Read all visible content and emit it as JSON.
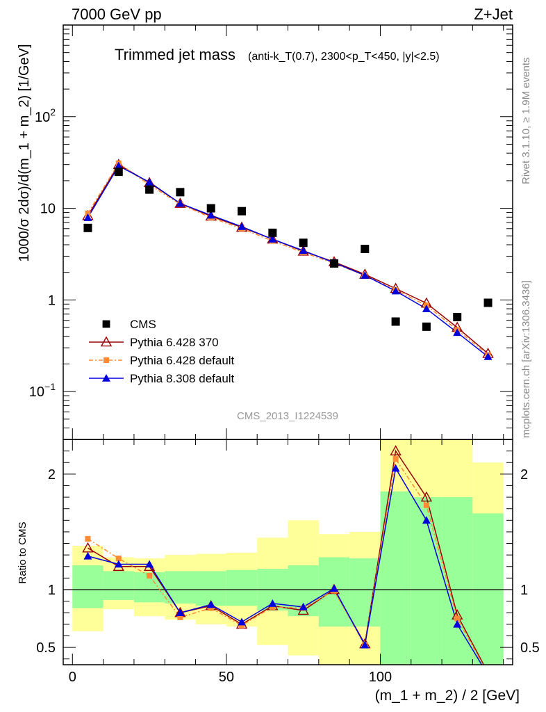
{
  "header": {
    "left": "7000 GeV pp",
    "right": "Z+Jet"
  },
  "title": {
    "main": "Trimmed jet mass",
    "sub": "(anti-k_T(0.7), 2300<p_T<450, |y|<2.5)"
  },
  "side_labels": {
    "rivet": "Rivet 3.1.10, ≥ 1.9M events",
    "mcplots": "mcplots.cern.ch [arXiv:1306.3436]"
  },
  "watermark": "CMS_2013_I1224539",
  "colors": {
    "cms": "#000000",
    "p6_370": "#990000",
    "p6_default": "#ff8a33",
    "p8_default": "#0000dd",
    "band_inner": "#99ff99",
    "band_outer": "#ffff99"
  },
  "chart_data": {
    "type": "line",
    "xlabel": "(m_1 + m_2) / 2 [GeV]",
    "ylabel": "1000/σ 2dσ)/d(m_1 + m_2) [1/GeV]",
    "ratio_ylabel": "Ratio to CMS",
    "xlim": [
      -3,
      143
    ],
    "ylim": [
      0.03,
      1000
    ],
    "yscale": "log",
    "ratio_ylim": [
      0.35,
      2.3
    ],
    "xticks": [
      0,
      50,
      100
    ],
    "yticks": [
      {
        "value": 0.1,
        "base": "10",
        "exp": "−1"
      },
      {
        "value": 1,
        "label": "1"
      },
      {
        "value": 10,
        "label": "10"
      },
      {
        "value": 100,
        "base": "10",
        "exp": "2"
      }
    ],
    "ratio_yticks": [
      {
        "value": 0.5,
        "label": "0.5"
      },
      {
        "value": 1,
        "label": "1"
      },
      {
        "value": 2,
        "label": "2"
      }
    ],
    "legend_position": "bottom-left",
    "x": [
      5,
      15,
      25,
      35,
      45,
      55,
      65,
      75,
      85,
      95,
      105,
      115,
      125,
      135
    ],
    "cms": [
      6.1,
      25,
      16,
      15,
      10,
      9.3,
      5.4,
      4.2,
      2.5,
      3.6,
      0.58,
      0.51,
      0.65,
      0.93
    ],
    "series": [
      {
        "name": "Pythia 6.428 370",
        "key": "p6_370",
        "values": [
          8.3,
          30,
          19,
          11.3,
          8.2,
          6.2,
          4.6,
          3.4,
          2.6,
          1.9,
          1.33,
          0.92,
          0.5,
          0.26
        ]
      },
      {
        "name": "Pythia 6.428 default",
        "key": "p6_default",
        "values": [
          8.8,
          31,
          18,
          11.1,
          7.9,
          6.0,
          4.4,
          3.3,
          2.5,
          1.85,
          1.28,
          0.87,
          0.47,
          0.25
        ]
      },
      {
        "name": "Pythia 8.308 default",
        "key": "p8_default",
        "values": [
          7.9,
          29,
          19.3,
          11.3,
          8.4,
          6.3,
          4.6,
          3.45,
          2.55,
          1.85,
          1.25,
          0.8,
          0.44,
          0.24
        ]
      }
    ],
    "cms_legend": "CMS",
    "ratio_series": [
      {
        "key": "p6_370",
        "values": [
          1.36,
          1.2,
          1.2,
          0.8,
          0.86,
          0.7,
          0.86,
          0.82,
          1.0,
          0.53,
          2.2,
          1.8,
          0.78,
          0.28
        ]
      },
      {
        "key": "p6_default",
        "values": [
          1.44,
          1.27,
          1.12,
          0.76,
          0.84,
          0.69,
          0.85,
          0.84,
          0.99,
          0.52,
          2.13,
          1.73,
          0.75,
          0.27
        ]
      },
      {
        "key": "p8_default",
        "values": [
          1.29,
          1.22,
          1.22,
          0.8,
          0.87,
          0.72,
          0.88,
          0.85,
          1.01,
          0.52,
          2.05,
          1.6,
          0.7,
          0.26
        ]
      }
    ],
    "bands": [
      {
        "x0": 0,
        "x1": 10,
        "inner": [
          0.84,
          1.21
        ],
        "outer": [
          0.64,
          1.38
        ]
      },
      {
        "x0": 10,
        "x1": 20,
        "inner": [
          0.91,
          1.16
        ],
        "outer": [
          0.83,
          1.28
        ]
      },
      {
        "x0": 20,
        "x1": 30,
        "inner": [
          0.89,
          1.15
        ],
        "outer": [
          0.77,
          1.27
        ]
      },
      {
        "x0": 30,
        "x1": 40,
        "inner": [
          0.88,
          1.16
        ],
        "outer": [
          0.74,
          1.3
        ]
      },
      {
        "x0": 40,
        "x1": 50,
        "inner": [
          0.86,
          1.16
        ],
        "outer": [
          0.7,
          1.31
        ]
      },
      {
        "x0": 50,
        "x1": 60,
        "inner": [
          0.86,
          1.17
        ],
        "outer": [
          0.68,
          1.32
        ]
      },
      {
        "x0": 60,
        "x1": 70,
        "inner": [
          0.82,
          1.18
        ],
        "outer": [
          0.52,
          1.45
        ]
      },
      {
        "x0": 70,
        "x1": 80,
        "inner": [
          0.77,
          1.21
        ],
        "outer": [
          0.43,
          1.6
        ]
      },
      {
        "x0": 80,
        "x1": 90,
        "inner": [
          0.68,
          1.28
        ],
        "outer": [
          0.3,
          1.48
        ]
      },
      {
        "x0": 90,
        "x1": 100,
        "inner": [
          0.68,
          1.27
        ],
        "outer": [
          0.3,
          1.5
        ]
      },
      {
        "x0": 100,
        "x1": 110,
        "inner": [
          0.3,
          1.85
        ],
        "outer": [
          0.3,
          3.0
        ]
      },
      {
        "x0": 110,
        "x1": 120,
        "inner": [
          0.3,
          1.8
        ],
        "outer": [
          0.3,
          2.4
        ]
      },
      {
        "x0": 120,
        "x1": 130,
        "inner": [
          0.3,
          1.8
        ],
        "outer": [
          0.3,
          2.35
        ]
      },
      {
        "x0": 130,
        "x1": 140,
        "inner": [
          0.3,
          1.66
        ],
        "outer": [
          0.42,
          2.1
        ]
      }
    ]
  }
}
